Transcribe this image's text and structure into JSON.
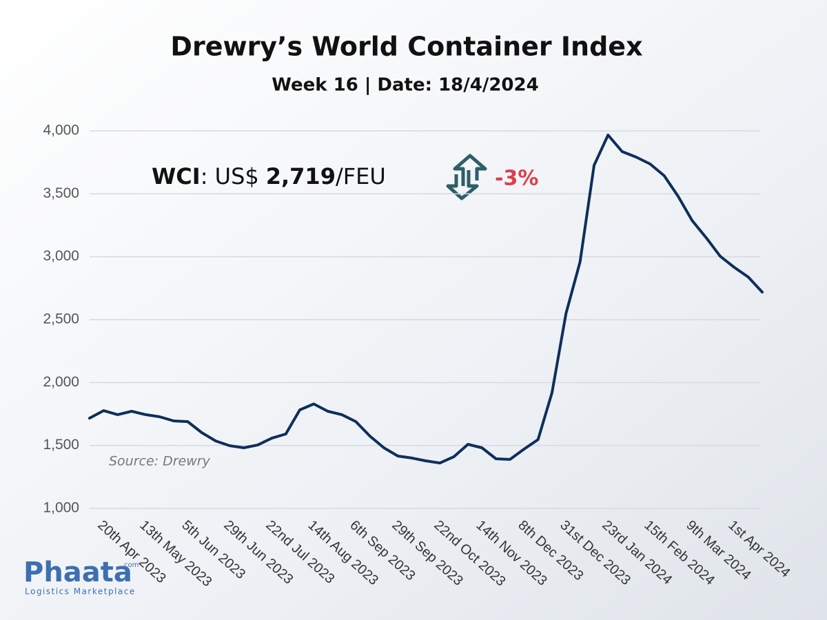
{
  "chart_data": {
    "type": "line",
    "title": "Drewry’s World Container Index",
    "subtitle": "Week 16 | Date: 18/4/2024",
    "headline": {
      "label": "WCI",
      "prefix": ": US$",
      "value": "2,719",
      "unit": "/FEU",
      "change": "-3%"
    },
    "source": "Source: Drewry",
    "categories": [
      null,
      "20th Apr 2023",
      null,
      null,
      "13th May 2023",
      null,
      null,
      "5th Jun 2023",
      null,
      null,
      "29th Jun 2023",
      null,
      null,
      "22nd Jul 2023",
      null,
      null,
      "14th Aug 2023",
      null,
      null,
      "6th Sep 2023",
      null,
      null,
      "29th Sep 2023",
      null,
      null,
      "22nd Oct 2023",
      null,
      null,
      "14th Nov 2023",
      null,
      null,
      "8th Dec 2023",
      null,
      null,
      "31st Dec 2023",
      null,
      null,
      "23rd Jan 2024",
      null,
      null,
      "15th Feb 2024",
      null,
      null,
      "9th Mar 2024",
      null,
      null,
      "1st Apr 2024",
      null,
      null
    ],
    "series": [
      {
        "name": "WCI",
        "color": "#0d2f5a",
        "values": [
          1717,
          1777,
          1745,
          1772,
          1745,
          1728,
          1695,
          1690,
          1602,
          1536,
          1498,
          1482,
          1504,
          1558,
          1591,
          1783,
          1830,
          1772,
          1745,
          1690,
          1575,
          1482,
          1416,
          1400,
          1378,
          1361,
          1411,
          1509,
          1482,
          1394,
          1389,
          1471,
          1547,
          1920,
          2549,
          2960,
          3726,
          3967,
          3836,
          3792,
          3737,
          3644,
          3480,
          3288,
          3151,
          3004,
          2916,
          2839,
          2719
        ]
      }
    ],
    "ylim": [
      1000,
      4000
    ],
    "yticks": [
      {
        "value": 1000,
        "label": "1,000"
      },
      {
        "value": 1500,
        "label": "1,500"
      },
      {
        "value": 2000,
        "label": "2,000"
      },
      {
        "value": 2500,
        "label": "2,500"
      },
      {
        "value": 3000,
        "label": "3,000"
      },
      {
        "value": 3500,
        "label": "3,500"
      },
      {
        "value": 4000,
        "label": "4,000"
      }
    ],
    "grid": true
  },
  "logo": {
    "name": "Phaata",
    "suffix": "com",
    "tagline": "Logistics Marketplace"
  }
}
